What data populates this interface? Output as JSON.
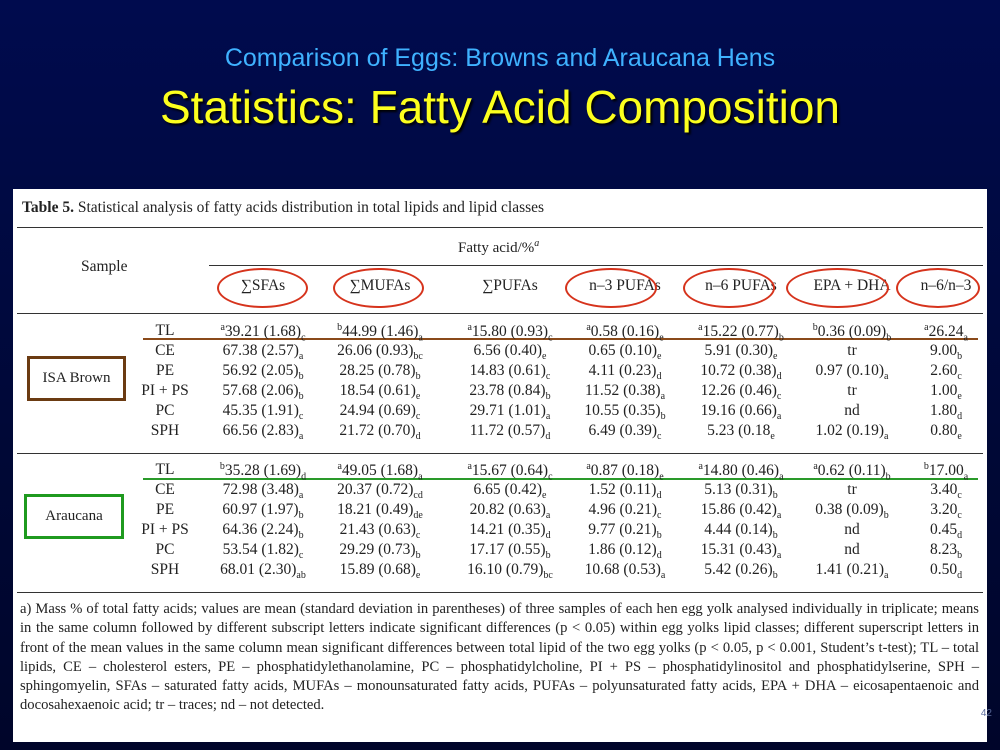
{
  "slide": {
    "subtitle": "Comparison of Eggs: Browns and Araucana Hens",
    "title": "Statistics: Fatty Acid Composition"
  },
  "table": {
    "caption_label": "Table 5.",
    "caption_text": "Statistical analysis of fatty acids distribution in total lipids and lipid classes",
    "sample_header": "Sample",
    "group_header": "Fatty acid/%",
    "group_header_note": "a",
    "columns": [
      {
        "label": "∑SFAs",
        "circled": true
      },
      {
        "label": "∑MUFAs",
        "circled": true
      },
      {
        "label": "∑PUFAs",
        "circled": false
      },
      {
        "label": "n–3 PUFAs",
        "circled": true
      },
      {
        "label": "n–6 PUFAs",
        "circled": true
      },
      {
        "label": "EPA + DHA",
        "circled": true
      },
      {
        "label": "n–6/n–3",
        "circled": true
      }
    ],
    "groups": [
      {
        "name": "ISA Brown",
        "box_color": "#6b3b12",
        "line_color": "#8a4a1a",
        "rows": [
          {
            "label": "TL",
            "cells": [
              {
                "sup": "a",
                "v": "39.21 (1.68)",
                "sub": "c"
              },
              {
                "sup": "b",
                "v": "44.99 (1.46)",
                "sub": "a"
              },
              {
                "sup": "a",
                "v": "15.80 (0.93)",
                "sub": "c"
              },
              {
                "sup": "a",
                "v": "0.58 (0.16)",
                "sub": "e"
              },
              {
                "sup": "a",
                "v": "15.22 (0.77)",
                "sub": "b"
              },
              {
                "sup": "b",
                "v": "0.36 (0.09)",
                "sub": "b"
              },
              {
                "sup": "a",
                "v": "26.24",
                "sub": "a"
              }
            ]
          },
          {
            "label": "CE",
            "cells": [
              {
                "sup": "",
                "v": "67.38 (2.57)",
                "sub": "a"
              },
              {
                "sup": "",
                "v": "26.06 (0.93)",
                "sub": "bc"
              },
              {
                "sup": "",
                "v": "6.56 (0.40)",
                "sub": "e"
              },
              {
                "sup": "",
                "v": "0.65 (0.10)",
                "sub": "e"
              },
              {
                "sup": "",
                "v": "5.91 (0.30)",
                "sub": "e"
              },
              {
                "sup": "",
                "v": "tr",
                "sub": ""
              },
              {
                "sup": "",
                "v": "9.00",
                "sub": "b"
              }
            ]
          },
          {
            "label": "PE",
            "cells": [
              {
                "sup": "",
                "v": "56.92 (2.05)",
                "sub": "b"
              },
              {
                "sup": "",
                "v": "28.25 (0.78)",
                "sub": "b"
              },
              {
                "sup": "",
                "v": "14.83 (0.61)",
                "sub": "c"
              },
              {
                "sup": "",
                "v": "4.11 (0.23)",
                "sub": "d"
              },
              {
                "sup": "",
                "v": "10.72 (0.38)",
                "sub": "d"
              },
              {
                "sup": "",
                "v": "0.97 (0.10)",
                "sub": "a"
              },
              {
                "sup": "",
                "v": "2.60",
                "sub": "c"
              }
            ]
          },
          {
            "label": "PI + PS",
            "cells": [
              {
                "sup": "",
                "v": "57.68 (2.06)",
                "sub": "b"
              },
              {
                "sup": "",
                "v": "18.54 (0.61)",
                "sub": "e"
              },
              {
                "sup": "",
                "v": "23.78 (0.84)",
                "sub": "b"
              },
              {
                "sup": "",
                "v": "11.52 (0.38)",
                "sub": "a"
              },
              {
                "sup": "",
                "v": "12.26 (0.46)",
                "sub": "c"
              },
              {
                "sup": "",
                "v": "tr",
                "sub": ""
              },
              {
                "sup": "",
                "v": "1.00",
                "sub": "e"
              }
            ]
          },
          {
            "label": "PC",
            "cells": [
              {
                "sup": "",
                "v": "45.35 (1.91)",
                "sub": "c"
              },
              {
                "sup": "",
                "v": "24.94 (0.69)",
                "sub": "c"
              },
              {
                "sup": "",
                "v": "29.71 (1.01)",
                "sub": "a"
              },
              {
                "sup": "",
                "v": "10.55 (0.35)",
                "sub": "b"
              },
              {
                "sup": "",
                "v": "19.16 (0.66)",
                "sub": "a"
              },
              {
                "sup": "",
                "v": "nd",
                "sub": ""
              },
              {
                "sup": "",
                "v": "1.80",
                "sub": "d"
              }
            ]
          },
          {
            "label": "SPH",
            "cells": [
              {
                "sup": "",
                "v": "66.56 (2.83)",
                "sub": "a"
              },
              {
                "sup": "",
                "v": "21.72 (0.70)",
                "sub": "d"
              },
              {
                "sup": "",
                "v": "11.72 (0.57)",
                "sub": "d"
              },
              {
                "sup": "",
                "v": "6.49 (0.39)",
                "sub": "c"
              },
              {
                "sup": "",
                "v": "5.23 (0.18",
                "sub": "e"
              },
              {
                "sup": "",
                "v": "1.02 (0.19)",
                "sub": "a"
              },
              {
                "sup": "",
                "v": "0.80",
                "sub": "e"
              }
            ]
          }
        ]
      },
      {
        "name": "Araucana",
        "box_color": "#1f9a1f",
        "line_color": "#2a9a2a",
        "rows": [
          {
            "label": "TL",
            "cells": [
              {
                "sup": "b",
                "v": "35.28 (1.69)",
                "sub": "d"
              },
              {
                "sup": "a",
                "v": "49.05 (1.68)",
                "sub": "a"
              },
              {
                "sup": "a",
                "v": "15.67 (0.64)",
                "sub": "c"
              },
              {
                "sup": "a",
                "v": "0.87 (0.18)",
                "sub": "e"
              },
              {
                "sup": "a",
                "v": "14.80 (0.46)",
                "sub": "a"
              },
              {
                "sup": "a",
                "v": "0.62 (0.11)",
                "sub": "b"
              },
              {
                "sup": "b",
                "v": "17.00",
                "sub": "a"
              }
            ]
          },
          {
            "label": "CE",
            "cells": [
              {
                "sup": "",
                "v": "72.98 (3.48)",
                "sub": "a"
              },
              {
                "sup": "",
                "v": "20.37 (0.72)",
                "sub": "cd"
              },
              {
                "sup": "",
                "v": "6.65 (0.42)",
                "sub": "e"
              },
              {
                "sup": "",
                "v": "1.52 (0.11)",
                "sub": "d"
              },
              {
                "sup": "",
                "v": "5.13 (0.31)",
                "sub": "b"
              },
              {
                "sup": "",
                "v": "tr",
                "sub": ""
              },
              {
                "sup": "",
                "v": "3.40",
                "sub": "c"
              }
            ]
          },
          {
            "label": "PE",
            "cells": [
              {
                "sup": "",
                "v": "60.97 (1.97)",
                "sub": "b"
              },
              {
                "sup": "",
                "v": "18.21 (0.49)",
                "sub": "de"
              },
              {
                "sup": "",
                "v": "20.82 (0.63)",
                "sub": "a"
              },
              {
                "sup": "",
                "v": "4.96 (0.21)",
                "sub": "c"
              },
              {
                "sup": "",
                "v": "15.86 (0.42)",
                "sub": "a"
              },
              {
                "sup": "",
                "v": "0.38 (0.09)",
                "sub": "b"
              },
              {
                "sup": "",
                "v": "3.20",
                "sub": "c"
              }
            ]
          },
          {
            "label": "PI + PS",
            "cells": [
              {
                "sup": "",
                "v": "64.36 (2.24)",
                "sub": "b"
              },
              {
                "sup": "",
                "v": "21.43 (0.63)",
                "sub": "c"
              },
              {
                "sup": "",
                "v": "14.21 (0.35)",
                "sub": "d"
              },
              {
                "sup": "",
                "v": "9.77 (0.21)",
                "sub": "b"
              },
              {
                "sup": "",
                "v": "4.44 (0.14)",
                "sub": "b"
              },
              {
                "sup": "",
                "v": "nd",
                "sub": ""
              },
              {
                "sup": "",
                "v": "0.45",
                "sub": "d"
              }
            ]
          },
          {
            "label": "PC",
            "cells": [
              {
                "sup": "",
                "v": "53.54 (1.82)",
                "sub": "c"
              },
              {
                "sup": "",
                "v": "29.29 (0.73)",
                "sub": "b"
              },
              {
                "sup": "",
                "v": "17.17 (0.55)",
                "sub": "b"
              },
              {
                "sup": "",
                "v": "1.86 (0.12)",
                "sub": "d"
              },
              {
                "sup": "",
                "v": "15.31 (0.43)",
                "sub": "a"
              },
              {
                "sup": "",
                "v": "nd",
                "sub": ""
              },
              {
                "sup": "",
                "v": "8.23",
                "sub": "b"
              }
            ]
          },
          {
            "label": "SPH",
            "cells": [
              {
                "sup": "",
                "v": "68.01 (2.30)",
                "sub": "ab"
              },
              {
                "sup": "",
                "v": "15.89 (0.68)",
                "sub": "e"
              },
              {
                "sup": "",
                "v": "16.10 (0.79)",
                "sub": "bc"
              },
              {
                "sup": "",
                "v": "10.68 (0.53)",
                "sub": "a"
              },
              {
                "sup": "",
                "v": "5.42 (0.26)",
                "sub": "b"
              },
              {
                "sup": "",
                "v": "1.41 (0.21)",
                "sub": "a"
              },
              {
                "sup": "",
                "v": "0.50",
                "sub": "d"
              }
            ]
          }
        ]
      }
    ],
    "footnote": "a) Mass % of total fatty acids; values are mean (standard deviation in parentheses) of three samples of each hen egg yolk analysed individually in triplicate; means in the same column followed by different subscript letters indicate significant differences (p < 0.05) within egg yolks lipid classes; different superscript letters in front of the mean values in the same column mean significant differences between total lipid of the two egg yolks (p < 0.05, p < 0.001, Student’s t-test); TL – total lipids, CE – cholesterol esters, PE – phosphatidylethanolamine, PC – phosphatidylcholine, PI + PS – phosphatidylinositol and phosphatidylserine, SPH – sphingomyelin, SFAs – saturated fatty acids, MUFAs – monounsaturated fatty acids, PUFAs – polyunsaturated fatty acids, EPA + DHA – eicosapentaenoic and docosahexaenoic acid; tr – traces; nd – not detected.",
    "page_number": "42",
    "highlight_color": "#d6331c"
  }
}
